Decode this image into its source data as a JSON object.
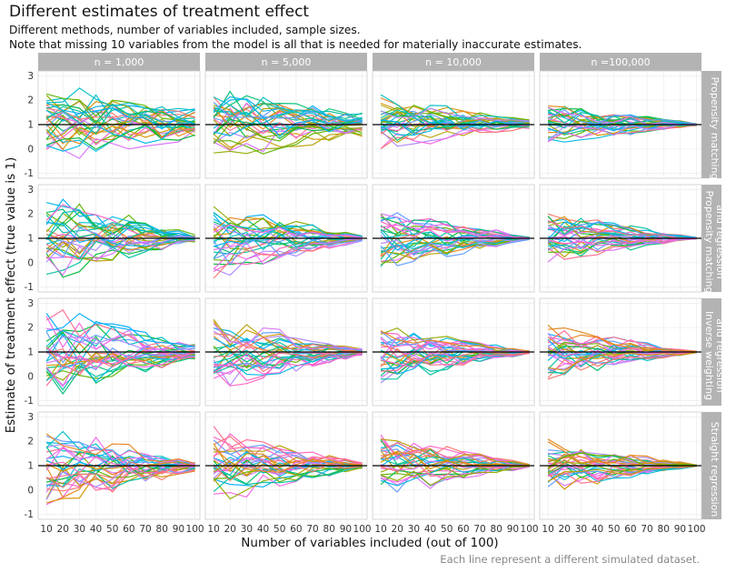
{
  "title": "Different estimates of treatment effect",
  "subtitle_lines": [
    "Different methods, number of variables included, sample sizes.",
    "Note that missing 10 variables from the model is all that is needed for materially inaccurate estimates."
  ],
  "caption": "Each line represent a different simulated dataset.",
  "chart_data": {
    "type": "line",
    "facet_columns": [
      "n =  1,000",
      "n =  5,000",
      "n = 10,000",
      "n =100,000"
    ],
    "facet_rows": [
      [
        "Propensity matching"
      ],
      [
        "Propensity matching",
        "and regression"
      ],
      [
        "Inverse weighting",
        "and regression"
      ],
      [
        "Straight regression"
      ]
    ],
    "x": [
      10,
      20,
      30,
      40,
      50,
      60,
      70,
      80,
      90,
      100
    ],
    "xlim": [
      5,
      103
    ],
    "ylim": [
      -1.2,
      3.2
    ],
    "xticks": [
      10,
      20,
      30,
      40,
      50,
      60,
      70,
      80,
      90,
      100
    ],
    "yticks": [
      -1,
      0,
      1,
      2,
      3
    ],
    "xlabel": "Number of variables included (out of 100)",
    "ylabel": "Estimate of treatment effect (true value is 1)",
    "reference_line_y": 1,
    "series_per_panel": 30,
    "series_colors": [
      "#F8766D",
      "#E7861B",
      "#D39200",
      "#B79F00",
      "#93AA00",
      "#5EB300",
      "#00BA38",
      "#00BF74",
      "#00C19F",
      "#00BFC4",
      "#00B9E3",
      "#00ADFA",
      "#619CFF",
      "#AE87FF",
      "#DB72FB",
      "#F564E3",
      "#FF61C3",
      "#FF6C90"
    ],
    "panels": [
      {
        "row": 0,
        "col": 0,
        "spread_start": 1.6,
        "spread_end": 0.7
      },
      {
        "row": 0,
        "col": 1,
        "spread_start": 1.4,
        "spread_end": 0.45
      },
      {
        "row": 0,
        "col": 2,
        "spread_start": 1.1,
        "spread_end": 0.2
      },
      {
        "row": 0,
        "col": 3,
        "spread_start": 0.9,
        "spread_end": 0.05
      },
      {
        "row": 1,
        "col": 0,
        "spread_start": 1.7,
        "spread_end": 0.15
      },
      {
        "row": 1,
        "col": 1,
        "spread_start": 1.5,
        "spread_end": 0.1
      },
      {
        "row": 1,
        "col": 2,
        "spread_start": 1.2,
        "spread_end": 0.05
      },
      {
        "row": 1,
        "col": 3,
        "spread_start": 1.0,
        "spread_end": 0.03
      },
      {
        "row": 2,
        "col": 0,
        "spread_start": 1.7,
        "spread_end": 0.3
      },
      {
        "row": 2,
        "col": 1,
        "spread_start": 1.5,
        "spread_end": 0.12
      },
      {
        "row": 2,
        "col": 2,
        "spread_start": 1.2,
        "spread_end": 0.06
      },
      {
        "row": 2,
        "col": 3,
        "spread_start": 1.0,
        "spread_end": 0.03
      },
      {
        "row": 3,
        "col": 0,
        "spread_start": 1.7,
        "spread_end": 0.2
      },
      {
        "row": 3,
        "col": 1,
        "spread_start": 1.5,
        "spread_end": 0.1
      },
      {
        "row": 3,
        "col": 2,
        "spread_start": 1.2,
        "spread_end": 0.05
      },
      {
        "row": 3,
        "col": 3,
        "spread_start": 1.0,
        "spread_end": 0.03
      }
    ]
  }
}
